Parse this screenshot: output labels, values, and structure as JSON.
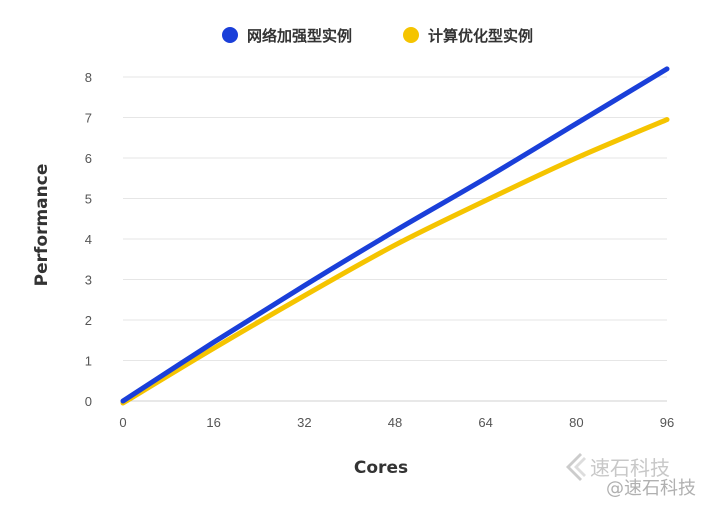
{
  "chart_data": {
    "type": "line",
    "xlabel": "Cores",
    "ylabel": "Performance",
    "xlim": [
      0,
      96
    ],
    "ylim": [
      0,
      8
    ],
    "xticks": [
      0,
      16,
      32,
      48,
      64,
      80,
      96
    ],
    "yticks": [
      0,
      1,
      2,
      3,
      4,
      5,
      6,
      7,
      8
    ],
    "grid": true,
    "legend_position": "top-center",
    "series": [
      {
        "name": "网络加强型实例",
        "color": "#1a3fd9",
        "x": [
          0,
          16,
          32,
          48,
          64,
          80,
          96
        ],
        "y": [
          0,
          1.45,
          2.85,
          4.2,
          5.5,
          6.85,
          8.2
        ]
      },
      {
        "name": "计算优化型实例",
        "color": "#f5c400",
        "x": [
          0,
          16,
          32,
          48,
          64,
          80,
          96
        ],
        "y": [
          -0.05,
          1.3,
          2.6,
          3.85,
          4.95,
          6.0,
          6.95
        ]
      }
    ]
  },
  "watermark": {
    "brand": "速石科技",
    "weibo": "@速石科技"
  }
}
